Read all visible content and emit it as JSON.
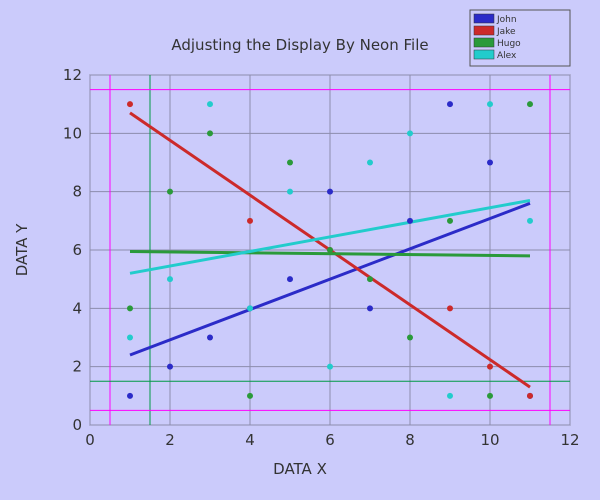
{
  "chart_data": {
    "type": "scatter",
    "title": "Adjusting the Display By Neon File",
    "xlabel": "DATA X",
    "ylabel": "DATA Y",
    "xlim": [
      0,
      12
    ],
    "ylim": [
      0,
      12
    ],
    "xticks": [
      0,
      2,
      4,
      6,
      8,
      10,
      12
    ],
    "yticks": [
      0,
      2,
      4,
      6,
      8,
      10,
      12
    ],
    "grid": true,
    "legend_position": "top-right",
    "background_color": "#cbcbfb",
    "reference_lines": {
      "vertical": [
        {
          "x": 0.5,
          "color": "#ff00ff"
        },
        {
          "x": 1.5,
          "color": "#009944"
        },
        {
          "x": 11.5,
          "color": "#ff00ff"
        }
      ],
      "horizontal": [
        {
          "y": 0.5,
          "color": "#ff00ff"
        },
        {
          "y": 1.5,
          "color": "#009944"
        },
        {
          "y": 11.5,
          "color": "#ff00ff"
        }
      ]
    },
    "series": [
      {
        "name": "John",
        "color": "#2b2bc8",
        "points": [
          [
            1,
            1
          ],
          [
            2,
            2
          ],
          [
            3,
            3
          ],
          [
            4,
            4
          ],
          [
            5,
            5
          ],
          [
            6,
            8
          ],
          [
            7,
            4
          ],
          [
            8,
            7
          ],
          [
            9,
            11
          ],
          [
            10,
            9
          ],
          [
            11,
            1
          ]
        ],
        "trend": [
          [
            1,
            2.4
          ],
          [
            11,
            7.6
          ]
        ]
      },
      {
        "name": "Jake",
        "color": "#cc2a2a",
        "points": [
          [
            1,
            11
          ],
          [
            4,
            7
          ],
          [
            6,
            6
          ],
          [
            9,
            4
          ],
          [
            10,
            2
          ],
          [
            11,
            1
          ]
        ],
        "trend": [
          [
            1,
            10.7
          ],
          [
            11,
            1.3
          ]
        ]
      },
      {
        "name": "Hugo",
        "color": "#2a9a3a",
        "points": [
          [
            1,
            4
          ],
          [
            2,
            8
          ],
          [
            3,
            10
          ],
          [
            4,
            1
          ],
          [
            5,
            9
          ],
          [
            6,
            6
          ],
          [
            7,
            5
          ],
          [
            8,
            3
          ],
          [
            9,
            7
          ],
          [
            10,
            1
          ],
          [
            11,
            11
          ]
        ],
        "trend": [
          [
            1,
            5.95
          ],
          [
            11,
            5.8
          ]
        ]
      },
      {
        "name": "Alex",
        "color": "#22cccc",
        "points": [
          [
            1,
            3
          ],
          [
            2,
            5
          ],
          [
            3,
            11
          ],
          [
            4,
            4
          ],
          [
            5,
            8
          ],
          [
            6,
            2
          ],
          [
            7,
            9
          ],
          [
            8,
            10
          ],
          [
            9,
            1
          ],
          [
            10,
            11
          ],
          [
            11,
            7
          ]
        ],
        "trend": [
          [
            1,
            5.2
          ],
          [
            11,
            7.7
          ]
        ]
      }
    ]
  }
}
